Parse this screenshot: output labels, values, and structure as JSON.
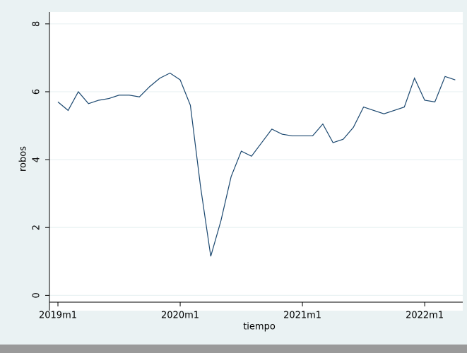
{
  "chart_data": {
    "type": "line",
    "x_label": "tiempo",
    "y_label": "robos",
    "categories": [
      "2019m1",
      null,
      null,
      null,
      null,
      null,
      null,
      null,
      null,
      null,
      null,
      null,
      "2020m1",
      null,
      null,
      null,
      null,
      null,
      null,
      null,
      null,
      null,
      null,
      null,
      "2021m1",
      null,
      null,
      null,
      null,
      null,
      null,
      null,
      null,
      null,
      null,
      null,
      "2022m1",
      null,
      null,
      null
    ],
    "values": [
      5.7,
      5.45,
      6.0,
      5.65,
      5.75,
      5.8,
      5.9,
      5.9,
      5.85,
      6.15,
      6.4,
      6.55,
      6.35,
      5.6,
      3.2,
      1.15,
      2.2,
      3.5,
      4.25,
      4.1,
      4.5,
      4.9,
      4.75,
      4.7,
      4.7,
      4.7,
      5.05,
      4.5,
      4.6,
      4.95,
      5.55,
      5.45,
      5.35,
      5.45,
      5.55,
      6.4,
      5.75,
      5.7,
      6.45,
      6.35
    ],
    "color": "#1a476f",
    "ylim": [
      -0.45,
      8.35
    ],
    "yticks": [
      0,
      2,
      4,
      6,
      8
    ],
    "grid": true
  }
}
